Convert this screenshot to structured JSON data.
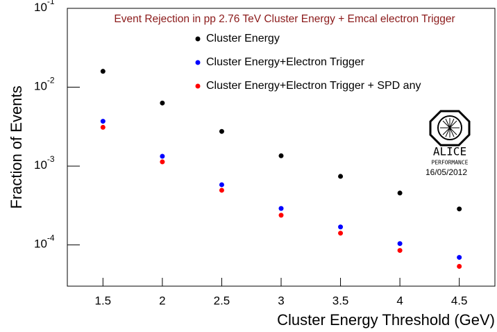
{
  "chart_data": {
    "type": "scatter",
    "title": "Event Rejection in pp 2.76 TeV Cluster Energy + Emcal electron Trigger",
    "x_label": "Cluster Energy Threshold (GeV)",
    "y_label": "Fraction of Events",
    "x": [
      1.5,
      2,
      2.5,
      3,
      3.5,
      4,
      4.5
    ],
    "series": [
      {
        "name": "Cluster Energy",
        "color": "#000000",
        "values": [
          0.0159,
          0.0063,
          0.00275,
          0.00135,
          0.00074,
          0.000455,
          0.000286
        ]
      },
      {
        "name": "Cluster Energy+Electron Trigger",
        "color": "#0000ff",
        "values": [
          0.0037,
          0.00133,
          0.00058,
          0.00029,
          0.000169,
          0.000104,
          6.95e-05
        ]
      },
      {
        "name": "Cluster Energy+Electron Trigger + SPD any",
        "color": "#ff0000",
        "values": [
          0.0031,
          0.00113,
          0.000493,
          0.000238,
          0.000141,
          8.51e-05,
          5.35e-05
        ]
      }
    ],
    "xlim": [
      1.2,
      4.8
    ],
    "xticks": [
      1.5,
      2,
      2.5,
      3,
      3.5,
      4,
      4.5
    ],
    "ylim": [
      3e-05,
      0.1
    ],
    "y_log": true,
    "yticks": [
      {
        "value": 0.1,
        "label": "10",
        "exponent": "-1"
      },
      {
        "value": 0.01,
        "label": "10",
        "exponent": "-2"
      },
      {
        "value": 0.001,
        "label": "10",
        "exponent": "-3"
      },
      {
        "value": 0.0001,
        "label": "10",
        "exponent": "-4"
      }
    ],
    "logo": {
      "name": "ALICE",
      "subtitle": "PERFORMANCE",
      "date": "16/05/2012"
    }
  }
}
